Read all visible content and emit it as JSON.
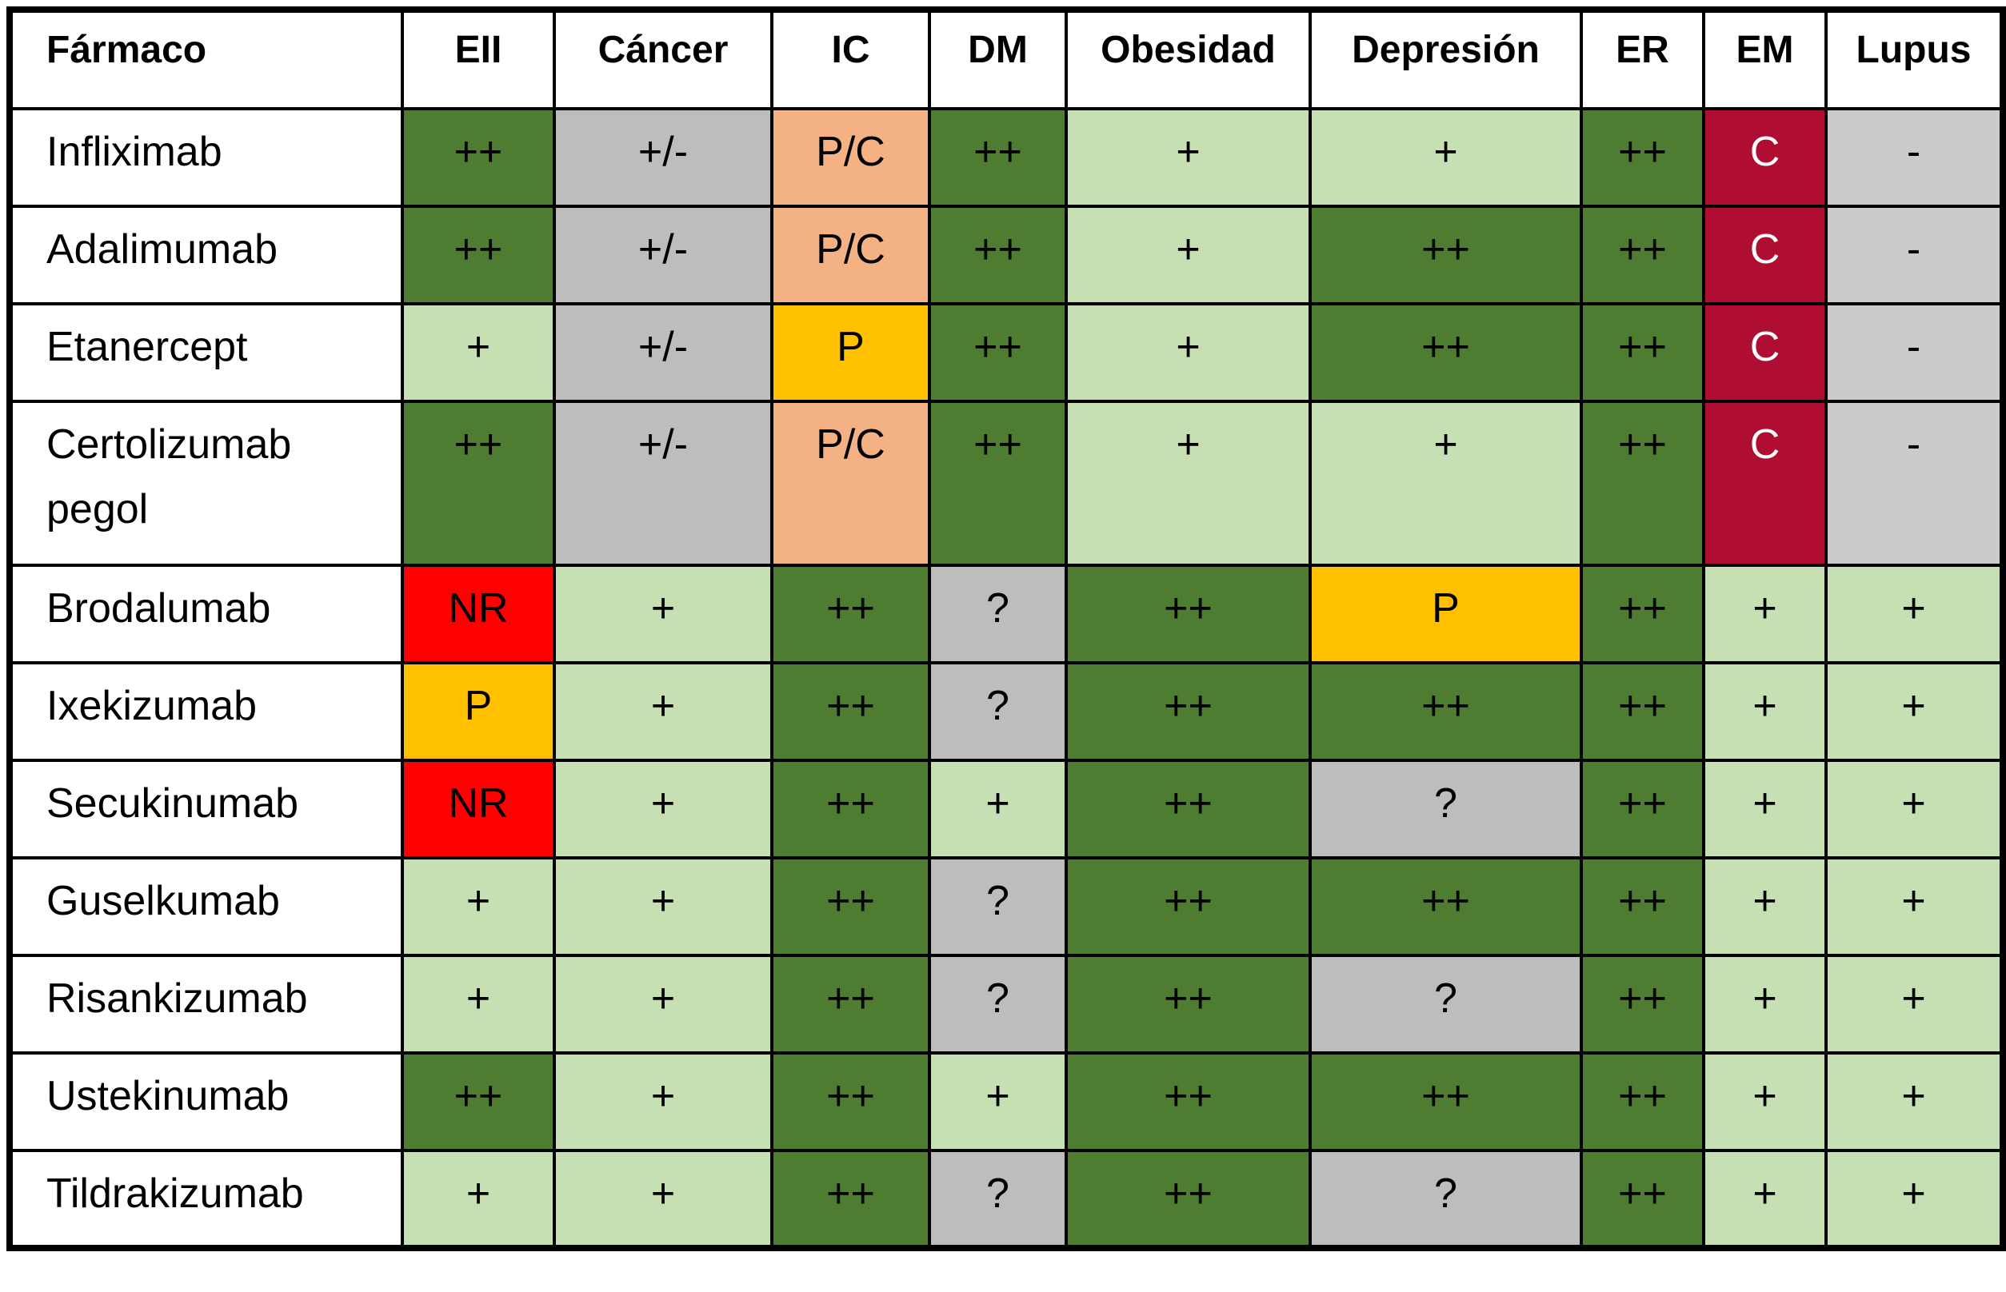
{
  "columns": [
    "Fármaco",
    "EII",
    "Cáncer",
    "IC",
    "DM",
    "Obesidad",
    "Depresión",
    "ER",
    "EM",
    "Lupus"
  ],
  "colors": {
    "dark_green": "#4E7C31",
    "light_green": "#C6E0B4",
    "gray": "#BDBDBD",
    "light_gray": "#CBCBCB",
    "salmon": "#F4B183",
    "gold": "#FFC000",
    "red": "#FF0000",
    "dark_red": "#B00D33"
  },
  "rows": [
    {
      "name": "Infliximab",
      "cells": [
        {
          "value": "++",
          "color": "dark_green"
        },
        {
          "value": "+/-",
          "color": "gray"
        },
        {
          "value": "P/C",
          "color": "salmon"
        },
        {
          "value": "++",
          "color": "dark_green"
        },
        {
          "value": "+",
          "color": "light_green"
        },
        {
          "value": "+",
          "color": "light_green"
        },
        {
          "value": "++",
          "color": "dark_green"
        },
        {
          "value": "C",
          "color": "dark_red"
        },
        {
          "value": "-",
          "color": "light_gray"
        }
      ]
    },
    {
      "name": "Adalimumab",
      "cells": [
        {
          "value": "++",
          "color": "dark_green"
        },
        {
          "value": "+/-",
          "color": "gray"
        },
        {
          "value": "P/C",
          "color": "salmon"
        },
        {
          "value": "++",
          "color": "dark_green"
        },
        {
          "value": "+",
          "color": "light_green"
        },
        {
          "value": "++",
          "color": "dark_green"
        },
        {
          "value": "++",
          "color": "dark_green"
        },
        {
          "value": "C",
          "color": "dark_red"
        },
        {
          "value": "-",
          "color": "light_gray"
        }
      ]
    },
    {
      "name": "Etanercept",
      "cells": [
        {
          "value": "+",
          "color": "light_green"
        },
        {
          "value": "+/-",
          "color": "gray"
        },
        {
          "value": "P",
          "color": "gold"
        },
        {
          "value": "++",
          "color": "dark_green"
        },
        {
          "value": "+",
          "color": "light_green"
        },
        {
          "value": "++",
          "color": "dark_green"
        },
        {
          "value": "++",
          "color": "dark_green"
        },
        {
          "value": "C",
          "color": "dark_red"
        },
        {
          "value": "-",
          "color": "light_gray"
        }
      ]
    },
    {
      "name": "Certolizumab pegol",
      "cells": [
        {
          "value": "++",
          "color": "dark_green"
        },
        {
          "value": "+/-",
          "color": "gray"
        },
        {
          "value": "P/C",
          "color": "salmon"
        },
        {
          "value": "++",
          "color": "dark_green"
        },
        {
          "value": "+",
          "color": "light_green"
        },
        {
          "value": "+",
          "color": "light_green"
        },
        {
          "value": "++",
          "color": "dark_green"
        },
        {
          "value": "C",
          "color": "dark_red"
        },
        {
          "value": "-",
          "color": "light_gray"
        }
      ]
    },
    {
      "name": "Brodalumab",
      "cells": [
        {
          "value": "NR",
          "color": "red"
        },
        {
          "value": "+",
          "color": "light_green"
        },
        {
          "value": "++",
          "color": "dark_green"
        },
        {
          "value": "?",
          "color": "gray"
        },
        {
          "value": "++",
          "color": "dark_green"
        },
        {
          "value": "P",
          "color": "gold"
        },
        {
          "value": "++",
          "color": "dark_green"
        },
        {
          "value": "+",
          "color": "light_green"
        },
        {
          "value": "+",
          "color": "light_green"
        }
      ]
    },
    {
      "name": "Ixekizumab",
      "cells": [
        {
          "value": "P",
          "color": "gold"
        },
        {
          "value": "+",
          "color": "light_green"
        },
        {
          "value": "++",
          "color": "dark_green"
        },
        {
          "value": "?",
          "color": "gray"
        },
        {
          "value": "++",
          "color": "dark_green"
        },
        {
          "value": "++",
          "color": "dark_green"
        },
        {
          "value": "++",
          "color": "dark_green"
        },
        {
          "value": "+",
          "color": "light_green"
        },
        {
          "value": "+",
          "color": "light_green"
        }
      ]
    },
    {
      "name": "Secukinumab",
      "cells": [
        {
          "value": "NR",
          "color": "red"
        },
        {
          "value": "+",
          "color": "light_green"
        },
        {
          "value": "++",
          "color": "dark_green"
        },
        {
          "value": "+",
          "color": "light_green"
        },
        {
          "value": "++",
          "color": "dark_green"
        },
        {
          "value": "?",
          "color": "gray"
        },
        {
          "value": "++",
          "color": "dark_green"
        },
        {
          "value": "+",
          "color": "light_green"
        },
        {
          "value": "+",
          "color": "light_green"
        }
      ]
    },
    {
      "name": "Guselkumab",
      "cells": [
        {
          "value": "+",
          "color": "light_green"
        },
        {
          "value": "+",
          "color": "light_green"
        },
        {
          "value": "++",
          "color": "dark_green"
        },
        {
          "value": "?",
          "color": "gray"
        },
        {
          "value": "++",
          "color": "dark_green"
        },
        {
          "value": "++",
          "color": "dark_green"
        },
        {
          "value": "++",
          "color": "dark_green"
        },
        {
          "value": "+",
          "color": "light_green"
        },
        {
          "value": "+",
          "color": "light_green"
        }
      ]
    },
    {
      "name": "Risankizumab",
      "cells": [
        {
          "value": "+",
          "color": "light_green"
        },
        {
          "value": "+",
          "color": "light_green"
        },
        {
          "value": "++",
          "color": "dark_green"
        },
        {
          "value": "?",
          "color": "gray"
        },
        {
          "value": "++",
          "color": "dark_green"
        },
        {
          "value": "?",
          "color": "gray"
        },
        {
          "value": "++",
          "color": "dark_green"
        },
        {
          "value": "+",
          "color": "light_green"
        },
        {
          "value": "+",
          "color": "light_green"
        }
      ]
    },
    {
      "name": "Ustekinumab",
      "cells": [
        {
          "value": "++",
          "color": "dark_green"
        },
        {
          "value": "+",
          "color": "light_green"
        },
        {
          "value": "++",
          "color": "dark_green"
        },
        {
          "value": "+",
          "color": "light_green"
        },
        {
          "value": "++",
          "color": "dark_green"
        },
        {
          "value": "++",
          "color": "dark_green"
        },
        {
          "value": "++",
          "color": "dark_green"
        },
        {
          "value": "+",
          "color": "light_green"
        },
        {
          "value": "+",
          "color": "light_green"
        }
      ]
    },
    {
      "name": "Tildrakizumab",
      "cells": [
        {
          "value": "+",
          "color": "light_green"
        },
        {
          "value": "+",
          "color": "light_green"
        },
        {
          "value": "++",
          "color": "dark_green"
        },
        {
          "value": "?",
          "color": "gray"
        },
        {
          "value": "++",
          "color": "dark_green"
        },
        {
          "value": "?",
          "color": "gray"
        },
        {
          "value": "++",
          "color": "dark_green"
        },
        {
          "value": "+",
          "color": "light_green"
        },
        {
          "value": "+",
          "color": "light_green"
        }
      ]
    }
  ]
}
